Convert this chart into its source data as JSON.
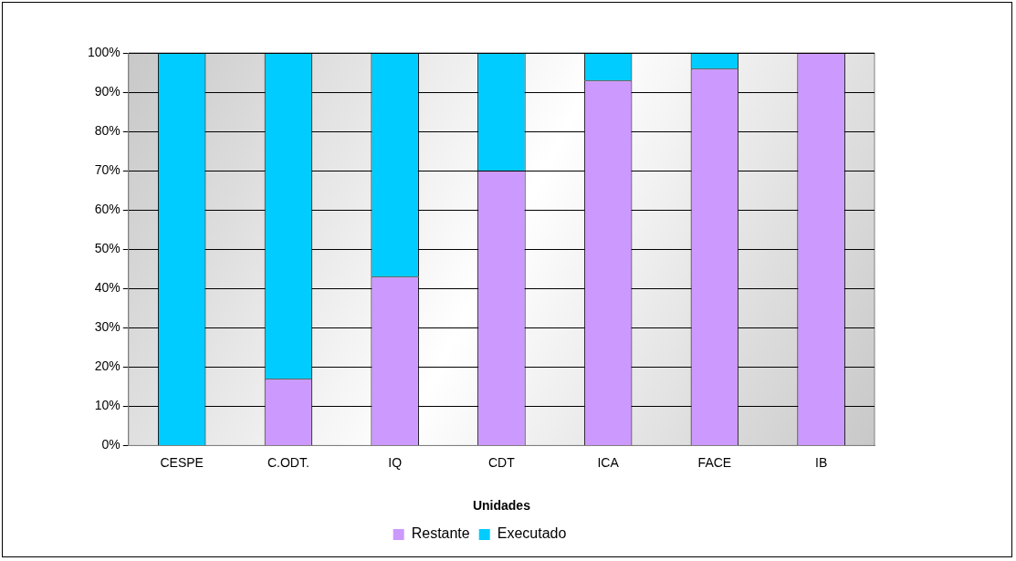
{
  "chart_data": {
    "type": "bar",
    "stacked": true,
    "xlabel": "Unidades",
    "categories": [
      "CESPE",
      "C.ODT.",
      "IQ",
      "CDT",
      "ICA",
      "FACE",
      "IB"
    ],
    "series": [
      {
        "name": "Restante",
        "color": "#cc99ff",
        "values": [
          0,
          17,
          43,
          70,
          93,
          96,
          100
        ]
      },
      {
        "name": "Executado",
        "color": "#00ccff",
        "values": [
          100,
          83,
          57,
          30,
          7,
          4,
          0
        ]
      }
    ],
    "ylim": [
      0,
      100
    ],
    "yticks": [
      {
        "value": 0,
        "label": "0%"
      },
      {
        "value": 10,
        "label": "10%"
      },
      {
        "value": 20,
        "label": "20%"
      },
      {
        "value": 30,
        "label": "30%"
      },
      {
        "value": 40,
        "label": "40%"
      },
      {
        "value": 50,
        "label": "50%"
      },
      {
        "value": 60,
        "label": "60%"
      },
      {
        "value": 70,
        "label": "70%"
      },
      {
        "value": 80,
        "label": "80%"
      },
      {
        "value": 90,
        "label": "90%"
      },
      {
        "value": 100,
        "label": "100%"
      }
    ],
    "grid": "y",
    "legend": "bottom"
  }
}
